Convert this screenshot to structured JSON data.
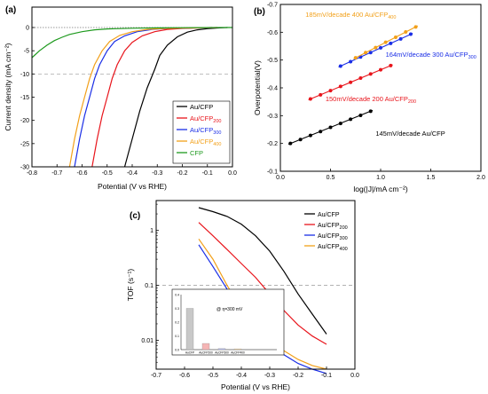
{
  "chart_data": [
    {
      "panel": "(a)",
      "type": "line",
      "xlabel": "Potential (V vs RHE)",
      "ylabel": "Current density (mA cm⁻²)",
      "xlim": [
        -0.8,
        0.0
      ],
      "ylim": [
        -30,
        0
      ],
      "xticks": [
        "-0.8",
        "-0.7",
        "-0.6",
        "-0.5",
        "-0.4",
        "-0.3",
        "-0.2",
        "-0.1",
        "0.0"
      ],
      "yticks": [
        "-30",
        "-25",
        "-20",
        "-15",
        "-10",
        "-5",
        "0"
      ],
      "xtick_values": [
        -0.8,
        -0.7,
        -0.6,
        -0.5,
        -0.4,
        -0.3,
        -0.2,
        -0.1,
        0.0
      ],
      "ytick_values": [
        -30,
        -25,
        -20,
        -15,
        -10,
        -5,
        0
      ],
      "reference_lines": [
        0,
        -10
      ],
      "legend_position": "bottom-right",
      "series": [
        {
          "name": "Au/CFP",
          "color": "#000000",
          "x": [
            -0.43,
            -0.4,
            -0.37,
            -0.34,
            -0.31,
            -0.29,
            -0.26,
            -0.22,
            -0.18,
            -0.14,
            -0.1,
            -0.06,
            -0.02
          ],
          "y": [
            -30,
            -24,
            -18,
            -13,
            -9,
            -6,
            -3.8,
            -2,
            -1,
            -0.5,
            -0.25,
            -0.1,
            0
          ]
        },
        {
          "name": "Au/CFP200",
          "color": "#e8141b",
          "x": [
            -0.56,
            -0.54,
            -0.52,
            -0.5,
            -0.48,
            -0.46,
            -0.43,
            -0.4,
            -0.36,
            -0.31,
            -0.26,
            -0.2,
            -0.14,
            -0.06
          ],
          "y": [
            -30,
            -24,
            -19,
            -15,
            -11,
            -8,
            -5,
            -3.2,
            -1.8,
            -0.9,
            -0.4,
            -0.2,
            -0.1,
            0
          ]
        },
        {
          "name": "Au/CFP300",
          "color": "#1a2ee6",
          "x": [
            -0.63,
            -0.61,
            -0.59,
            -0.57,
            -0.55,
            -0.53,
            -0.5,
            -0.47,
            -0.43,
            -0.38,
            -0.32,
            -0.26,
            -0.18,
            -0.08
          ],
          "y": [
            -30,
            -24,
            -19,
            -15,
            -11,
            -8,
            -5,
            -3,
            -1.8,
            -0.9,
            -0.4,
            -0.2,
            -0.1,
            0
          ]
        },
        {
          "name": "Au/CFP400",
          "color": "#f2a01a",
          "x": [
            -0.65,
            -0.63,
            -0.61,
            -0.59,
            -0.57,
            -0.55,
            -0.52,
            -0.49,
            -0.45,
            -0.4,
            -0.34,
            -0.27,
            -0.18,
            -0.08
          ],
          "y": [
            -30,
            -24,
            -19,
            -15,
            -11,
            -8,
            -5,
            -3,
            -1.7,
            -0.9,
            -0.4,
            -0.2,
            -0.1,
            0
          ]
        },
        {
          "name": "CFP",
          "color": "#1e9a1e",
          "x": [
            -0.8,
            -0.77,
            -0.74,
            -0.71,
            -0.68,
            -0.65,
            -0.6,
            -0.55,
            -0.5,
            -0.4,
            -0.3,
            -0.2,
            -0.1,
            0.0
          ],
          "y": [
            -6.5,
            -5,
            -3.8,
            -2.8,
            -2.1,
            -1.5,
            -0.9,
            -0.5,
            -0.3,
            -0.15,
            -0.07,
            -0.03,
            -0.01,
            0
          ]
        }
      ],
      "legend": [
        {
          "label": "Au/CFP",
          "sub": "",
          "color": "#000000",
          "text_color": "#000000"
        },
        {
          "label": "Au/CFP",
          "sub": "200",
          "color": "#e8141b",
          "text_color": "#e8141b"
        },
        {
          "label": "Au/CFP",
          "sub": "300",
          "color": "#1a2ee6",
          "text_color": "#1a2ee6"
        },
        {
          "label": "Au/CFP",
          "sub": "400",
          "color": "#f2a01a",
          "text_color": "#f2a01a"
        },
        {
          "label": "CFP",
          "sub": "",
          "color": "#1e9a1e",
          "text_color": "#1e9a1e"
        }
      ]
    },
    {
      "panel": "(b)",
      "type": "scatter",
      "xlabel": "log(|J|/mA cm⁻²)",
      "ylabel": "Overpotential(V)",
      "xlim": [
        0.0,
        2.0
      ],
      "ylim": [
        -0.1,
        -0.7
      ],
      "xticks": [
        "0.0",
        "0.5",
        "1.0",
        "1.5",
        "2.0"
      ],
      "yticks": [
        "-0.1",
        "-0.2",
        "-0.3",
        "-0.4",
        "-0.5",
        "-0.6",
        "-0.7"
      ],
      "xtick_values": [
        0.0,
        0.5,
        1.0,
        1.5,
        2.0
      ],
      "ytick_values": [
        -0.1,
        -0.2,
        -0.3,
        -0.4,
        -0.5,
        -0.6,
        -0.7
      ],
      "series": [
        {
          "name": "Au/CFP",
          "color": "#000000",
          "x": [
            0.1,
            0.2,
            0.3,
            0.4,
            0.5,
            0.6,
            0.7,
            0.8,
            0.9
          ],
          "y": [
            -0.2,
            -0.214,
            -0.229,
            -0.243,
            -0.258,
            -0.272,
            -0.287,
            -0.301,
            -0.316
          ],
          "fit": [
            [
              0.08,
              -0.197
            ],
            [
              0.92,
              -0.319
            ]
          ]
        },
        {
          "name": "Au/CFP200",
          "color": "#e8141b",
          "x": [
            0.3,
            0.4,
            0.5,
            0.6,
            0.7,
            0.8,
            0.9,
            1.0,
            1.1
          ],
          "y": [
            -0.36,
            -0.375,
            -0.39,
            -0.405,
            -0.42,
            -0.435,
            -0.45,
            -0.465,
            -0.48
          ],
          "fit": [
            [
              0.28,
              -0.357
            ],
            [
              1.12,
              -0.483
            ]
          ]
        },
        {
          "name": "Au/CFP300",
          "color": "#1a2ee6",
          "x": [
            0.6,
            0.7,
            0.8,
            0.9,
            1.0,
            1.1,
            1.2,
            1.3
          ],
          "y": [
            -0.478,
            -0.494,
            -0.511,
            -0.527,
            -0.544,
            -0.56,
            -0.576,
            -0.593
          ],
          "fit": [
            [
              0.58,
              -0.475
            ],
            [
              1.32,
              -0.596
            ]
          ]
        },
        {
          "name": "Au/CFP400",
          "color": "#f2a01a",
          "x": [
            0.75,
            0.85,
            0.95,
            1.05,
            1.15,
            1.25,
            1.35
          ],
          "y": [
            -0.508,
            -0.527,
            -0.545,
            -0.564,
            -0.582,
            -0.601,
            -0.619
          ],
          "fit": [
            [
              0.73,
              -0.504
            ],
            [
              1.37,
              -0.623
            ]
          ]
        }
      ],
      "annotations": [
        {
          "text": "145mV/decade Au/CFP",
          "sub": "",
          "color": "#000000",
          "x": 0.95,
          "y": -0.228
        },
        {
          "text": "150mV/decade 200 Au/CFP",
          "sub": "200",
          "color": "#e8141b",
          "x": 0.45,
          "y": -0.352
        },
        {
          "text": "164mV/decade 300 Au/CFP",
          "sub": "300",
          "color": "#1a2ee6",
          "x": 1.05,
          "y": -0.512
        },
        {
          "text": "185mV/decade 400 Au/CFP",
          "sub": "400",
          "color": "#f2a01a",
          "x": 0.25,
          "y": -0.655
        }
      ]
    },
    {
      "panel": "(c)",
      "type": "line",
      "xlabel": "Potential (V vs RHE)",
      "ylabel": "TOF (s⁻¹)",
      "xlim": [
        -0.7,
        0.0
      ],
      "ylim": [
        0.003,
        3.5
      ],
      "y_scale": "log",
      "xticks": [
        "-0.7",
        "-0.6",
        "-0.5",
        "-0.4",
        "-0.3",
        "-0.2",
        "-0.1",
        "0.0"
      ],
      "yticks": [
        "0.01",
        "0.1",
        "1"
      ],
      "xtick_values": [
        -0.7,
        -0.6,
        -0.5,
        -0.4,
        -0.3,
        -0.2,
        -0.1,
        0.0
      ],
      "ytick_values": [
        0.01,
        0.1,
        1
      ],
      "reference_lines": [
        0.1
      ],
      "legend_position": "top-right",
      "series": [
        {
          "name": "Au/CFP",
          "color": "#000000",
          "x": [
            -0.55,
            -0.5,
            -0.45,
            -0.4,
            -0.35,
            -0.3,
            -0.25,
            -0.2,
            -0.15,
            -0.1
          ],
          "y": [
            2.6,
            2.2,
            1.8,
            1.3,
            0.8,
            0.42,
            0.18,
            0.07,
            0.03,
            0.013
          ]
        },
        {
          "name": "Au/CFP200",
          "color": "#e8141b",
          "x": [
            -0.55,
            -0.5,
            -0.45,
            -0.4,
            -0.35,
            -0.3,
            -0.25,
            -0.2,
            -0.15,
            -0.1
          ],
          "y": [
            1.4,
            0.8,
            0.45,
            0.25,
            0.14,
            0.07,
            0.035,
            0.019,
            0.012,
            0.0085
          ]
        },
        {
          "name": "Au/CFP300",
          "color": "#1a2ee6",
          "x": [
            -0.55,
            -0.5,
            -0.45,
            -0.4,
            -0.35,
            -0.3,
            -0.25,
            -0.2,
            -0.15,
            -0.1
          ],
          "y": [
            0.55,
            0.22,
            0.085,
            0.035,
            0.016,
            0.009,
            0.0055,
            0.0038,
            0.003,
            0.0025
          ]
        },
        {
          "name": "Au/CFP400",
          "color": "#f2a01a",
          "x": [
            -0.55,
            -0.5,
            -0.45,
            -0.4,
            -0.35,
            -0.3,
            -0.25,
            -0.2,
            -0.15,
            -0.1
          ],
          "y": [
            0.7,
            0.3,
            0.1,
            0.038,
            0.017,
            0.01,
            0.0065,
            0.0045,
            0.0035,
            0.003
          ]
        }
      ],
      "legend": [
        {
          "label": "Au/CFP",
          "sub": "",
          "color": "#000000",
          "text_color": "#000000"
        },
        {
          "label": "Au/CFP",
          "sub": "200",
          "color": "#e8141b",
          "text_color": "#000000"
        },
        {
          "label": "Au/CFP",
          "sub": "300",
          "color": "#1a2ee6",
          "text_color": "#000000"
        },
        {
          "label": "Au/CFP",
          "sub": "400",
          "color": "#f2a01a",
          "text_color": "#000000"
        }
      ],
      "inset": {
        "type": "bar",
        "note": "@ η=300 mV",
        "ylim": [
          0,
          0.4
        ],
        "yticks": [
          "0.4",
          "0.3",
          "0.2",
          "0.1",
          "0.0"
        ],
        "ytick_values": [
          0.4,
          0.3,
          0.2,
          0.1,
          0.0
        ],
        "categories": [
          "AuCFP",
          "AuCFP200",
          "AuCFP300",
          "AuCFP400"
        ],
        "values": [
          0.3,
          0.045,
          0.008,
          0.006
        ],
        "colors": [
          "#c8c8c8",
          "#f5b5b5",
          "#b8bef2",
          "#f8d9a0"
        ]
      }
    }
  ]
}
